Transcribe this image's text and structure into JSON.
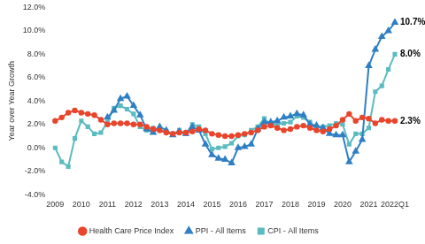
{
  "chart_data": {
    "type": "line",
    "y_label": "Year over Year Growth",
    "categories": [
      "2009",
      null,
      null,
      null,
      "2010",
      null,
      null,
      null,
      "2011",
      null,
      null,
      null,
      "2012",
      null,
      null,
      null,
      "2013",
      null,
      null,
      null,
      "2014",
      null,
      null,
      null,
      "2015",
      null,
      null,
      null,
      "2016",
      null,
      null,
      null,
      "2017",
      null,
      null,
      null,
      "2018",
      null,
      null,
      null,
      "2019",
      null,
      null,
      null,
      "2020",
      null,
      null,
      null,
      "2021",
      null,
      null,
      null,
      "2022Q1"
    ],
    "series": [
      {
        "name": "Health Care Price Index",
        "color": "#e8452c",
        "marker": "circle",
        "values": [
          2.3,
          2.6,
          3.0,
          3.2,
          3.0,
          2.9,
          2.8,
          2.4,
          2.0,
          2.1,
          2.1,
          2.1,
          2.0,
          2.0,
          1.8,
          1.6,
          1.5,
          1.3,
          1.2,
          1.3,
          1.3,
          1.4,
          1.6,
          1.5,
          1.2,
          1.1,
          1.0,
          1.0,
          1.1,
          1.2,
          1.3,
          1.5,
          1.8,
          1.9,
          1.7,
          1.5,
          1.6,
          1.8,
          1.9,
          1.7,
          1.5,
          1.4,
          1.6,
          1.9,
          2.4,
          2.9,
          2.3,
          2.6,
          2.5,
          2.1,
          2.4,
          2.3,
          2.3
        ],
        "value_labels": [
          null,
          null,
          null,
          null,
          null,
          null,
          null,
          null,
          null,
          null,
          null,
          null,
          null,
          null,
          null,
          null,
          null,
          null,
          null,
          null,
          null,
          null,
          null,
          null,
          null,
          null,
          null,
          null,
          null,
          null,
          null,
          null,
          null,
          null,
          null,
          null,
          null,
          null,
          null,
          null,
          null,
          null,
          null,
          null,
          null,
          null,
          null,
          null,
          null,
          null,
          null,
          null,
          "2.3%"
        ]
      },
      {
        "name": "PPI - All Items",
        "color": "#2f7fc4",
        "marker": "triangle",
        "values": [
          null,
          null,
          null,
          null,
          null,
          null,
          null,
          null,
          2.6,
          3.2,
          4.2,
          4.4,
          3.6,
          2.8,
          1.6,
          1.3,
          1.8,
          1.5,
          1.1,
          1.4,
          1.2,
          1.8,
          1.5,
          0.3,
          -0.6,
          -0.9,
          -1.0,
          -1.3,
          0.0,
          0.1,
          0.3,
          1.6,
          2.2,
          2.2,
          2.3,
          2.6,
          2.7,
          2.9,
          2.8,
          2.0,
          1.9,
          1.7,
          1.2,
          1.1,
          1.1,
          -1.2,
          -0.3,
          0.7,
          7.0,
          8.4,
          9.5,
          10.0,
          10.7
        ],
        "value_labels": [
          null,
          null,
          null,
          null,
          null,
          null,
          null,
          null,
          null,
          null,
          null,
          null,
          null,
          null,
          null,
          null,
          null,
          null,
          null,
          null,
          null,
          null,
          null,
          null,
          null,
          null,
          null,
          null,
          null,
          null,
          null,
          null,
          null,
          null,
          null,
          null,
          null,
          null,
          null,
          null,
          null,
          null,
          null,
          null,
          null,
          null,
          null,
          null,
          null,
          null,
          null,
          null,
          "10.7%"
        ]
      },
      {
        "name": "CPI - All Items",
        "color": "#5bbcc0",
        "marker": "square",
        "values": [
          0.0,
          -1.2,
          -1.6,
          0.8,
          2.3,
          1.8,
          1.2,
          1.3,
          2.2,
          3.4,
          3.6,
          3.3,
          2.9,
          1.8,
          1.5,
          1.7,
          1.5,
          1.4,
          1.2,
          1.5,
          1.2,
          2.0,
          1.8,
          1.2,
          -0.1,
          0.0,
          0.1,
          0.4,
          1.0,
          1.1,
          1.5,
          1.8,
          2.5,
          2.0,
          2.0,
          2.1,
          2.2,
          2.7,
          2.6,
          2.2,
          1.7,
          1.8,
          1.9,
          2.1,
          2.0,
          0.3,
          1.2,
          1.2,
          1.7,
          4.8,
          5.3,
          6.7,
          8.0
        ],
        "value_labels": [
          null,
          null,
          null,
          null,
          null,
          null,
          null,
          null,
          null,
          null,
          null,
          null,
          null,
          null,
          null,
          null,
          null,
          null,
          null,
          null,
          null,
          null,
          null,
          null,
          null,
          null,
          null,
          null,
          null,
          null,
          null,
          null,
          null,
          null,
          null,
          null,
          null,
          null,
          null,
          null,
          null,
          null,
          null,
          null,
          null,
          null,
          null,
          null,
          null,
          null,
          null,
          null,
          "8.0%"
        ]
      }
    ],
    "ylim": [
      -4,
      12
    ],
    "yticks": [
      {
        "value": -4,
        "label": "-4.0%"
      },
      {
        "value": -2,
        "label": "-2.0%"
      },
      {
        "value": 0,
        "label": "0.0%"
      },
      {
        "value": 2,
        "label": "2.0%"
      },
      {
        "value": 4,
        "label": "4.0%"
      },
      {
        "value": 6,
        "label": "6.0%"
      },
      {
        "value": 8,
        "label": "8.0%"
      },
      {
        "value": 10,
        "label": "10.0%"
      },
      {
        "value": 12,
        "label": "12.0%"
      }
    ],
    "grid": false,
    "legend": "bottom"
  }
}
